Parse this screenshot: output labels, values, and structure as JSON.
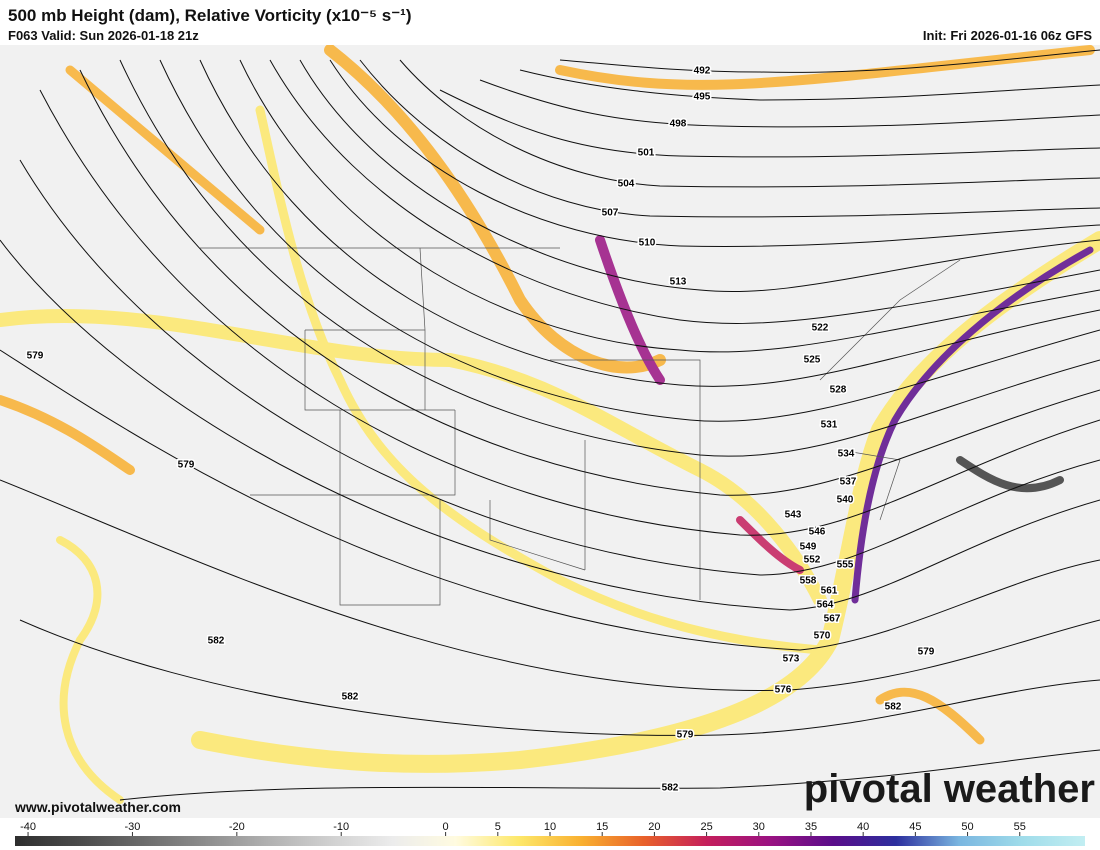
{
  "header": {
    "title": "500 mb Height (dam), Relative Vorticity (x10⁻⁵ s⁻¹)",
    "valid": "F063 Valid: Sun 2026-01-18 21z",
    "init": "Init: Fri 2026-01-16 06z GFS"
  },
  "map": {
    "contour_labels": [
      492,
      495,
      498,
      501,
      504,
      507,
      510,
      513,
      522,
      525,
      528,
      531,
      534,
      537,
      540,
      543,
      546,
      549,
      552,
      555,
      558,
      561,
      564,
      567,
      570,
      573,
      576,
      579,
      579,
      579,
      579,
      582,
      582,
      582,
      582
    ]
  },
  "colorbar": {
    "ticks": [
      -40,
      -30,
      -20,
      -10,
      0,
      5,
      10,
      15,
      20,
      25,
      30,
      35,
      40,
      45,
      50,
      55
    ],
    "lim": [
      -41.25,
      61.25
    ],
    "colors": [
      "#2e2e2e",
      "#4a4a4a",
      "#6a6a6a",
      "#8c8c8c",
      "#b0b0b0",
      "#d0d0d0",
      "#ececec",
      "#fffbe0",
      "#fde86a",
      "#f9b030",
      "#e8602a",
      "#c41e5c",
      "#9a1282",
      "#5a0d8a",
      "#2c2f9e",
      "#7ab6e0",
      "#9fdcea",
      "#c2eef2"
    ]
  },
  "footer": {
    "website": "www.pivotalweather.com",
    "brand": "pivotal weather"
  }
}
